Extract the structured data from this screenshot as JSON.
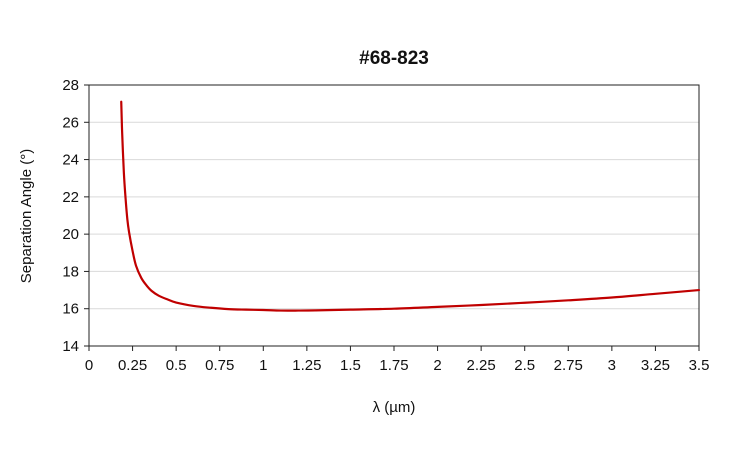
{
  "chart_data": {
    "type": "line",
    "title": "#68-823",
    "xlabel": "λ (µm)",
    "ylabel": "Separation Angle (°)",
    "xlim": [
      0,
      3.5
    ],
    "ylim": [
      14,
      28
    ],
    "x_ticks": [
      0,
      0.25,
      0.5,
      0.75,
      1,
      1.25,
      1.5,
      1.75,
      2,
      2.25,
      2.5,
      2.75,
      3,
      3.25,
      3.5
    ],
    "x_tick_labels": [
      "0",
      "0.25",
      "0.5",
      "0.75",
      "1",
      "1.25",
      "1.5",
      "1.75",
      "2",
      "2.25",
      "2.5",
      "2.75",
      "3",
      "3.25",
      "3.5"
    ],
    "y_ticks": [
      14,
      16,
      18,
      20,
      22,
      24,
      26,
      28
    ],
    "y_tick_labels": [
      "14",
      "16",
      "18",
      "20",
      "22",
      "24",
      "26",
      "28"
    ],
    "grid": {
      "horizontal": true,
      "vertical": false
    },
    "legend": "none",
    "series": [
      {
        "color": "#c00000",
        "x": [
          0.185,
          0.19,
          0.2,
          0.21,
          0.22,
          0.23,
          0.25,
          0.27,
          0.3,
          0.33,
          0.36,
          0.4,
          0.45,
          0.5,
          0.6,
          0.7,
          0.8,
          0.9,
          1.0,
          1.1,
          1.2,
          1.3,
          1.5,
          1.75,
          2.0,
          2.25,
          2.5,
          2.75,
          3.0,
          3.25,
          3.5
        ],
        "y": [
          27.1,
          25.5,
          23.3,
          21.9,
          20.8,
          20.1,
          19.1,
          18.3,
          17.65,
          17.25,
          16.95,
          16.7,
          16.5,
          16.33,
          16.15,
          16.05,
          15.98,
          15.95,
          15.93,
          15.9,
          15.9,
          15.91,
          15.95,
          16.0,
          16.1,
          16.2,
          16.32,
          16.45,
          16.6,
          16.8,
          17.0
        ]
      }
    ]
  }
}
